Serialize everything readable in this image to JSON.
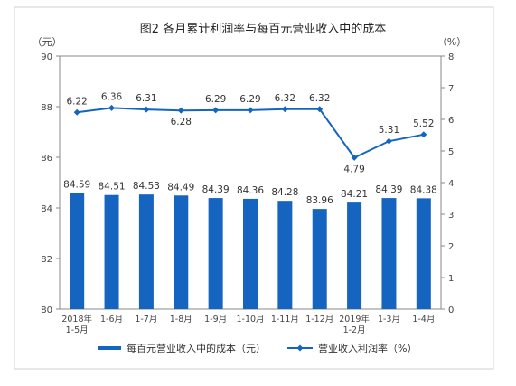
{
  "chart_data": {
    "type": "bar+line",
    "title": "图2  各月累计利润率与每百元营业收入中的成本",
    "left_unit": "（元）",
    "right_unit": "（%）",
    "left_axis": {
      "ylim": [
        80,
        90
      ],
      "ticks": [
        "80",
        "82",
        "84",
        "86",
        "88",
        "90"
      ]
    },
    "right_axis": {
      "ylim": [
        0,
        8
      ],
      "ticks": [
        "0",
        "1",
        "2",
        "3",
        "4",
        "5",
        "6",
        "7",
        "8"
      ]
    },
    "categories": [
      [
        "2018年",
        "1-5月"
      ],
      [
        "1-6月"
      ],
      [
        "1-7月"
      ],
      [
        "1-8月"
      ],
      [
        "1-9月"
      ],
      [
        "1-10月"
      ],
      [
        "1-11月"
      ],
      [
        "1-12月"
      ],
      [
        "2019年",
        "1-2月"
      ],
      [
        "1-3月"
      ],
      [
        "1-4月"
      ]
    ],
    "series": [
      {
        "name": "每百元营业收入中的成本（元）",
        "type": "bar",
        "axis": "left",
        "color": "#1565c0",
        "values": [
          84.59,
          84.51,
          84.53,
          84.49,
          84.39,
          84.36,
          84.28,
          83.96,
          84.21,
          84.39,
          84.38
        ],
        "labels": [
          "84.59",
          "84.51",
          "84.53",
          "84.49",
          "84.39",
          "84.36",
          "84.28",
          "83.96",
          "84.21",
          "84.39",
          "84.38"
        ]
      },
      {
        "name": "营业收入利润率（%）",
        "type": "line",
        "axis": "right",
        "color": "#1565c0",
        "values": [
          6.22,
          6.36,
          6.31,
          6.28,
          6.29,
          6.29,
          6.32,
          6.32,
          4.79,
          5.31,
          5.52
        ],
        "labels": [
          "6.22",
          "6.36",
          "6.31",
          "6.28",
          "6.29",
          "6.29",
          "6.32",
          "6.32",
          "4.79",
          "5.31",
          "5.52"
        ]
      }
    ],
    "grid": false,
    "legend": "bottom"
  }
}
